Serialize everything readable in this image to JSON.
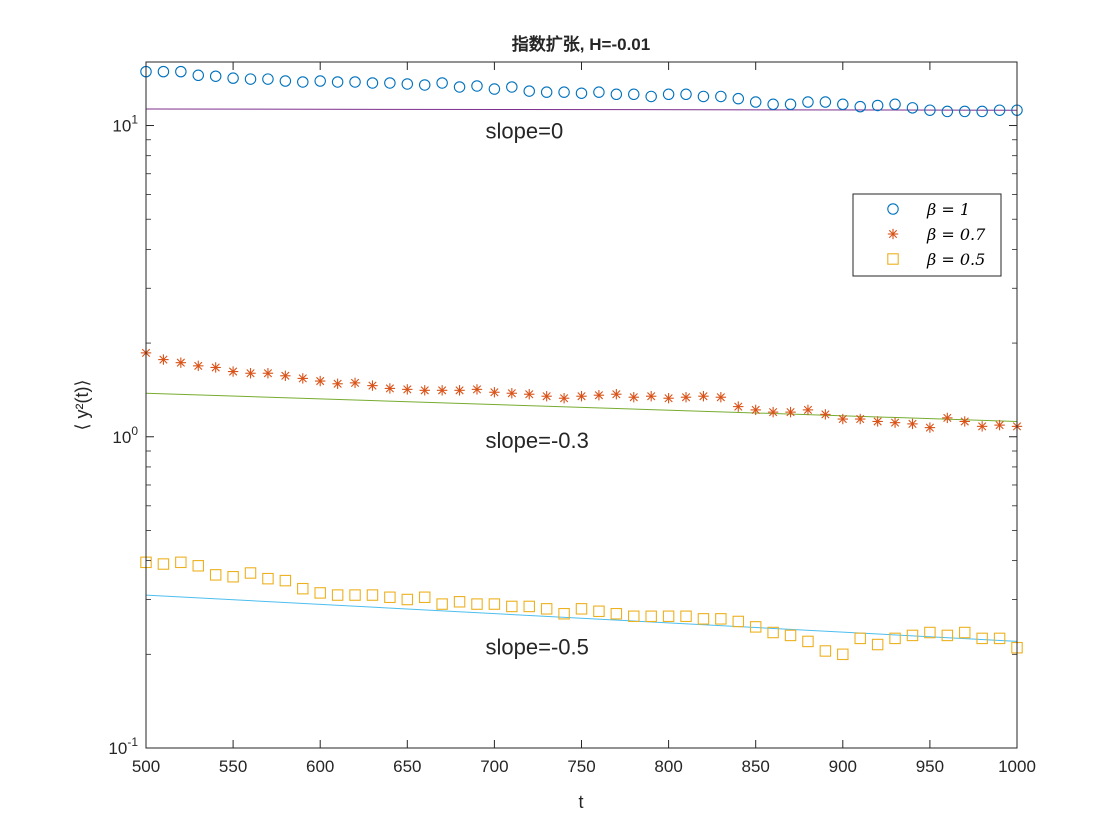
{
  "chart_data": {
    "type": "scatter",
    "title": "指数扩张, H=-0.01",
    "xlabel": "t",
    "ylabel": "⟨ y²(t)⟩",
    "x_scale": "linear",
    "y_scale": "log",
    "xlim": [
      500,
      1000
    ],
    "ylim": [
      0.1,
      16
    ],
    "x_ticks": [
      500,
      550,
      600,
      650,
      700,
      750,
      800,
      850,
      900,
      950,
      1000
    ],
    "y_ticks": [
      {
        "value": 0.1,
        "label": "10^-1"
      },
      {
        "value": 1,
        "label": "10^0"
      },
      {
        "value": 10,
        "label": "10^1"
      }
    ],
    "grid": false,
    "legend_position": "top-right",
    "series": [
      {
        "name": "β = 1",
        "marker": "circle",
        "color": "#0072BD",
        "x": [
          500,
          510,
          520,
          530,
          540,
          550,
          560,
          570,
          580,
          590,
          600,
          610,
          620,
          630,
          640,
          650,
          660,
          670,
          680,
          690,
          700,
          710,
          720,
          730,
          740,
          750,
          760,
          770,
          780,
          790,
          800,
          810,
          820,
          830,
          840,
          850,
          860,
          870,
          880,
          890,
          900,
          910,
          920,
          930,
          940,
          950,
          960,
          970,
          980,
          990,
          1000
        ],
        "y": [
          14.9,
          14.9,
          14.9,
          14.5,
          14.4,
          14.2,
          14.1,
          14.1,
          13.9,
          13.8,
          13.9,
          13.8,
          13.8,
          13.7,
          13.7,
          13.6,
          13.5,
          13.7,
          13.3,
          13.4,
          13.1,
          13.3,
          12.9,
          12.8,
          12.8,
          12.7,
          12.8,
          12.6,
          12.6,
          12.4,
          12.6,
          12.6,
          12.4,
          12.4,
          12.2,
          11.9,
          11.7,
          11.7,
          11.9,
          11.9,
          11.7,
          11.5,
          11.6,
          11.7,
          11.4,
          11.2,
          11.1,
          11.1,
          11.1,
          11.2,
          11.2
        ]
      },
      {
        "name": "β = 0.7",
        "marker": "asterisk",
        "color": "#D95319",
        "x": [
          500,
          510,
          520,
          530,
          540,
          550,
          560,
          570,
          580,
          590,
          600,
          610,
          620,
          630,
          640,
          650,
          660,
          670,
          680,
          690,
          700,
          710,
          720,
          730,
          740,
          750,
          760,
          770,
          780,
          790,
          800,
          810,
          820,
          830,
          840,
          850,
          860,
          870,
          880,
          890,
          900,
          910,
          920,
          930,
          940,
          950,
          960,
          970,
          980,
          990,
          1000
        ],
        "y": [
          1.86,
          1.77,
          1.73,
          1.69,
          1.67,
          1.62,
          1.6,
          1.6,
          1.57,
          1.54,
          1.51,
          1.48,
          1.49,
          1.46,
          1.43,
          1.42,
          1.41,
          1.41,
          1.41,
          1.42,
          1.39,
          1.38,
          1.37,
          1.35,
          1.33,
          1.35,
          1.36,
          1.37,
          1.34,
          1.35,
          1.33,
          1.34,
          1.35,
          1.34,
          1.25,
          1.22,
          1.2,
          1.2,
          1.22,
          1.18,
          1.14,
          1.14,
          1.12,
          1.11,
          1.1,
          1.07,
          1.15,
          1.12,
          1.08,
          1.09,
          1.08
        ]
      },
      {
        "name": "β = 0.5",
        "marker": "square",
        "color": "#EDB120",
        "x": [
          500,
          510,
          520,
          530,
          540,
          550,
          560,
          570,
          580,
          590,
          600,
          610,
          620,
          630,
          640,
          650,
          660,
          670,
          680,
          690,
          700,
          710,
          720,
          730,
          740,
          750,
          760,
          770,
          780,
          790,
          800,
          810,
          820,
          830,
          840,
          850,
          860,
          870,
          880,
          890,
          900,
          910,
          920,
          930,
          940,
          950,
          960,
          970,
          980,
          990,
          1000
        ],
        "y": [
          0.395,
          0.39,
          0.395,
          0.385,
          0.36,
          0.355,
          0.365,
          0.35,
          0.345,
          0.325,
          0.315,
          0.31,
          0.31,
          0.31,
          0.305,
          0.3,
          0.305,
          0.29,
          0.295,
          0.29,
          0.29,
          0.285,
          0.285,
          0.28,
          0.27,
          0.28,
          0.275,
          0.27,
          0.265,
          0.265,
          0.265,
          0.265,
          0.26,
          0.26,
          0.255,
          0.245,
          0.235,
          0.23,
          0.22,
          0.205,
          0.2,
          0.225,
          0.215,
          0.225,
          0.23,
          0.235,
          0.23,
          0.235,
          0.225,
          0.225,
          0.21
        ]
      }
    ],
    "fit_lines": [
      {
        "label": "slope=0",
        "color": "#7E2F8E",
        "x": [
          500,
          1000
        ],
        "y": [
          11.3,
          11.2
        ]
      },
      {
        "label": "slope=-0.3",
        "color": "#77AC30",
        "x": [
          500,
          1000
        ],
        "y": [
          1.38,
          1.12
        ]
      },
      {
        "label": "slope=-0.5",
        "color": "#4DBEEE",
        "x": [
          500,
          1000
        ],
        "y": [
          0.31,
          0.22
        ]
      }
    ],
    "annotations": [
      {
        "text": "slope=0",
        "x": 750,
        "y": 9.1
      },
      {
        "text": "slope=-0.3",
        "x": 750,
        "y": 0.92
      },
      {
        "text": "slope=-0.5",
        "x": 750,
        "y": 0.2
      }
    ]
  }
}
